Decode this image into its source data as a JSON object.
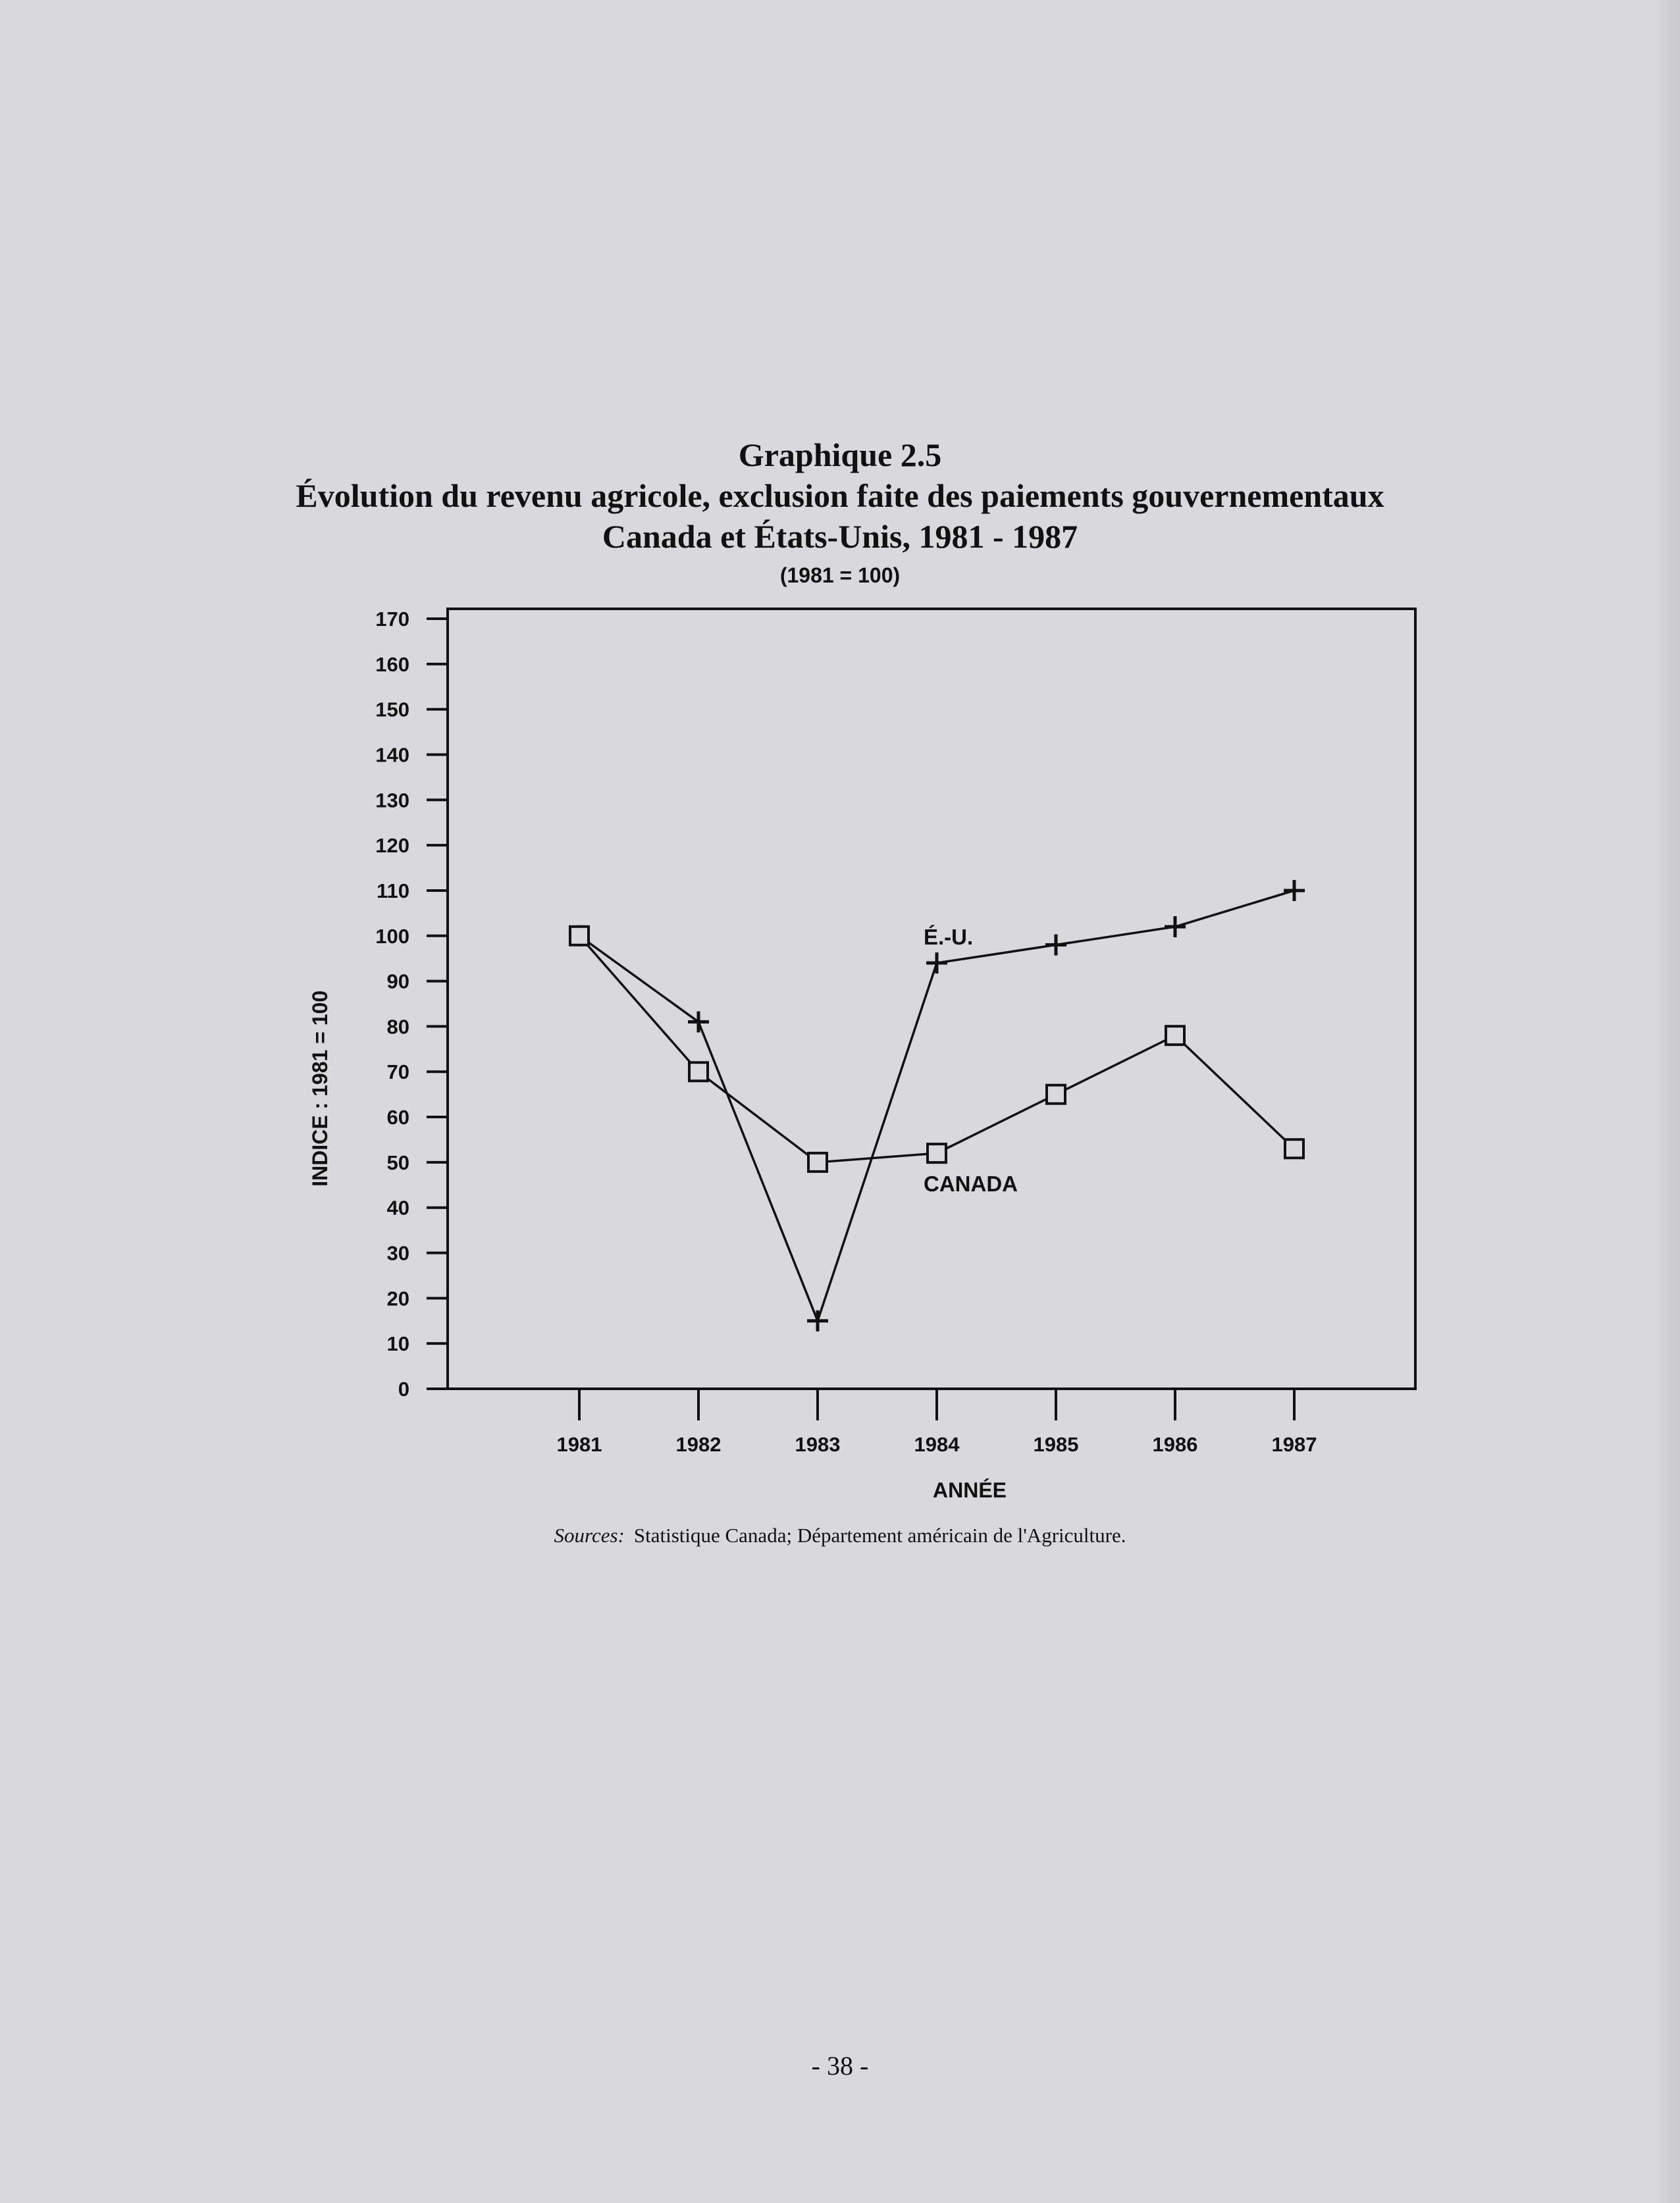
{
  "document": {
    "graph_number": "Graphique 2.5",
    "title_line1": "Évolution du revenu agricole, exclusion faite des paiements gouvernementaux",
    "title_line2": "Canada et États-Unis, 1981 - 1987",
    "base_note": "(1981 = 100)",
    "sources_label": "Sources:",
    "sources_text": "Statistique Canada; Département américain de l'Agriculture.",
    "page_number": "- 38 -"
  },
  "chart_data": {
    "type": "line",
    "title": "Évolution du revenu agricole, exclusion faite des paiements gouvernementaux",
    "subtitle": "Canada et États-Unis, 1981 - 1987",
    "xlabel": "ANNÉE",
    "ylabel": "INDICE : 1981 = 100",
    "x": [
      "1981",
      "1982",
      "1983",
      "1984",
      "1985",
      "1986",
      "1987"
    ],
    "ylim": [
      0,
      170
    ],
    "yticks": [
      0,
      10,
      20,
      30,
      40,
      50,
      60,
      70,
      80,
      90,
      100,
      110,
      120,
      130,
      140,
      150,
      160,
      170
    ],
    "grid": false,
    "series": [
      {
        "name": "É.-U.",
        "marker": "plus",
        "values": [
          100,
          81,
          15,
          94,
          98,
          102,
          110
        ]
      },
      {
        "name": "CANADA",
        "marker": "square",
        "values": [
          100,
          70,
          50,
          52,
          65,
          78,
          53
        ]
      }
    ]
  }
}
